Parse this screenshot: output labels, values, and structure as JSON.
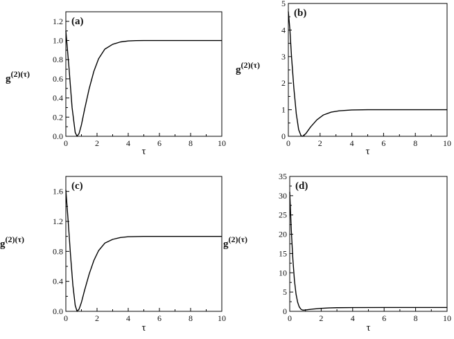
{
  "chart_data": [
    {
      "type": "line",
      "panel_label": "(a)",
      "xlabel": "τ",
      "ylabel": {
        "base": "g",
        "sup": "(2)",
        "arg": "(τ)"
      },
      "xlim": [
        0,
        10
      ],
      "ylim": [
        0,
        1.3
      ],
      "xticks": [
        "0",
        "2",
        "4",
        "6",
        "8",
        "10"
      ],
      "yticks": [
        "0.0",
        "0.2",
        "0.4",
        "0.6",
        "0.8",
        "1.0",
        "1.2"
      ],
      "grid": false,
      "series": [
        {
          "x": [
            0,
            0.2,
            0.4,
            0.6,
            0.72,
            0.85,
            1.0,
            1.2,
            1.5,
            1.8,
            2.1,
            2.5,
            3.0,
            3.5,
            4.0,
            4.5,
            5.0,
            6.0,
            8.0,
            10.0
          ],
          "y": [
            1.1,
            0.72,
            0.3,
            0.04,
            0.0,
            0.03,
            0.12,
            0.28,
            0.5,
            0.68,
            0.81,
            0.91,
            0.96,
            0.985,
            0.995,
            0.999,
            1.0,
            1.0,
            1.0,
            1.0
          ]
        }
      ]
    },
    {
      "type": "line",
      "panel_label": "(b)",
      "xlabel": "τ",
      "ylabel": {
        "base": "g",
        "sup": "(2)",
        "arg": "(τ)"
      },
      "xlim": [
        0,
        10
      ],
      "ylim": [
        0,
        5
      ],
      "xticks": [
        "0",
        "2",
        "4",
        "6",
        "8",
        "10"
      ],
      "yticks": [
        "0",
        "1",
        "2",
        "3",
        "4",
        "5"
      ],
      "grid": false,
      "series": [
        {
          "x": [
            0,
            0.1,
            0.2,
            0.35,
            0.5,
            0.65,
            0.8,
            0.9,
            1.1,
            1.4,
            1.8,
            2.2,
            2.7,
            3.2,
            4.0,
            5.0,
            6.0,
            8.0,
            10.0
          ],
          "y": [
            4.7,
            4.0,
            3.0,
            1.8,
            0.85,
            0.25,
            0.02,
            0.0,
            0.1,
            0.35,
            0.62,
            0.8,
            0.91,
            0.96,
            0.99,
            1.0,
            1.0,
            1.0,
            1.0
          ]
        }
      ]
    },
    {
      "type": "line",
      "panel_label": "(c)",
      "xlabel": "τ",
      "ylabel": {
        "base": "g",
        "sup": "(2)",
        "arg": "(τ)"
      },
      "xlim": [
        0,
        10
      ],
      "ylim": [
        0,
        1.8
      ],
      "xticks": [
        "0",
        "2",
        "4",
        "6",
        "8",
        "10"
      ],
      "yticks": [
        "0.0",
        "0.4",
        "0.8",
        "1.2",
        "1.6"
      ],
      "grid": false,
      "series": [
        {
          "x": [
            0,
            0.15,
            0.3,
            0.45,
            0.6,
            0.72,
            0.85,
            1.0,
            1.2,
            1.5,
            1.8,
            2.1,
            2.5,
            3.0,
            3.5,
            4.0,
            5.0,
            6.0,
            8.0,
            10.0
          ],
          "y": [
            1.62,
            1.2,
            0.75,
            0.35,
            0.08,
            0.0,
            0.03,
            0.12,
            0.28,
            0.5,
            0.68,
            0.81,
            0.91,
            0.96,
            0.985,
            0.995,
            1.0,
            1.0,
            1.0,
            1.0
          ]
        }
      ]
    },
    {
      "type": "line",
      "panel_label": "(d)",
      "xlabel": "τ",
      "ylabel": {
        "base": "g",
        "sup": "(2)",
        "arg": "(τ)"
      },
      "xlim": [
        0,
        10
      ],
      "ylim": [
        0,
        35
      ],
      "xticks": [
        "0",
        "2",
        "4",
        "6",
        "8",
        "10"
      ],
      "yticks": [
        "0",
        "5",
        "10",
        "15",
        "20",
        "25",
        "30",
        "35"
      ],
      "grid": false,
      "series": [
        {
          "x": [
            0,
            0.05,
            0.1,
            0.2,
            0.3,
            0.4,
            0.5,
            0.6,
            0.7,
            0.8,
            0.9,
            1.0,
            1.2,
            1.5,
            2.0,
            2.5,
            3.0,
            4.0,
            6.0,
            8.0,
            10.0
          ],
          "y": [
            31.0,
            26.0,
            21.0,
            13.5,
            8.0,
            4.5,
            2.4,
            1.2,
            0.6,
            0.35,
            0.3,
            0.35,
            0.45,
            0.6,
            0.78,
            0.88,
            0.94,
            0.98,
            1.0,
            1.0,
            1.0
          ]
        }
      ]
    }
  ]
}
